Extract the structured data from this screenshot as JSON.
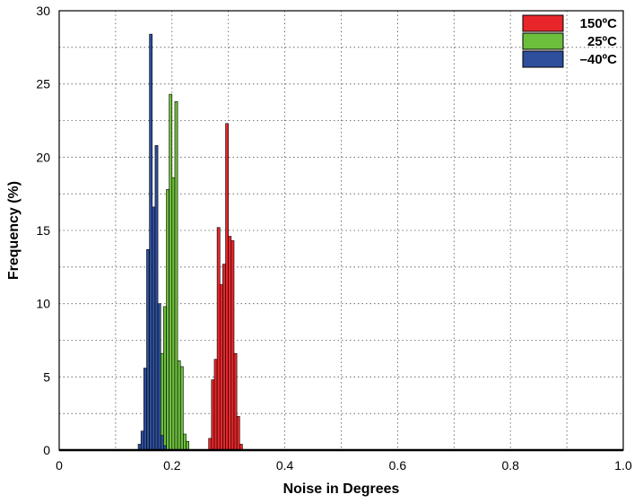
{
  "chart_data": {
    "type": "bar",
    "title": "",
    "xlabel": "Noise in Degrees",
    "ylabel": "Frequency (%)",
    "xlim": [
      0,
      1.0
    ],
    "ylim": [
      0,
      30
    ],
    "x_ticks": [
      0,
      0.2,
      0.4,
      0.6,
      0.8,
      1.0
    ],
    "x_tick_labels": [
      "0",
      "0.2",
      "0.4",
      "0.6",
      "0.8",
      "1.0"
    ],
    "y_ticks": [
      0,
      5,
      10,
      15,
      20,
      25,
      30
    ],
    "y_tick_labels": [
      "0",
      "5",
      "10",
      "15",
      "20",
      "25",
      "30"
    ],
    "grid": true,
    "legend_position": "top-right",
    "bin_width": 0.005,
    "series": [
      {
        "name": "150ºC",
        "color": "#e8262a",
        "x": [
          0.2675,
          0.2725,
          0.2775,
          0.2825,
          0.2875,
          0.2925,
          0.2975,
          0.3025,
          0.3075,
          0.3125,
          0.3175,
          0.3225
        ],
        "values": [
          0.8,
          4.8,
          6.2,
          15.2,
          11.3,
          12.7,
          22.3,
          14.6,
          14.3,
          6.6,
          2.3,
          0.4
        ]
      },
      {
        "name": "25ºC",
        "color": "#6cbf3c",
        "x": [
          0.1725,
          0.1775,
          0.1825,
          0.1875,
          0.1925,
          0.1975,
          0.2025,
          0.2075,
          0.2125,
          0.2175,
          0.2225,
          0.2275
        ],
        "values": [
          0.4,
          0.9,
          6.6,
          9.8,
          17.8,
          24.3,
          18.6,
          23.8,
          6.1,
          5.7,
          1.1,
          0.6
        ]
      },
      {
        "name": "–40ºC",
        "color": "#2e4f9c",
        "x": [
          0.1425,
          0.1475,
          0.1525,
          0.1575,
          0.1625,
          0.1675,
          0.1725,
          0.1775,
          0.1825,
          0.1875
        ],
        "values": [
          0.4,
          1.3,
          5.6,
          13.7,
          28.4,
          16.6,
          20.8,
          10.0,
          1.0,
          0.3
        ]
      }
    ]
  }
}
